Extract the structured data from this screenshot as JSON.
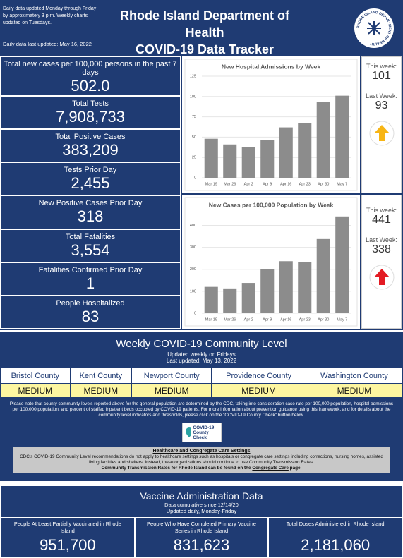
{
  "header": {
    "note": "Daily data updated Monday through Friday by approximately 3 p.m. Weekly charts updated on Tuesdays.",
    "last_updated": "Daily data last updated: May 16, 2022",
    "title_line1": "Rhode Island Department of Health",
    "title_line2": "COVID-19 Data Tracker",
    "logo_text": "RHODE ISLAND DEPARTMENT OF HEALTH"
  },
  "stats": [
    {
      "label": "Total new cases per 100,000 persons in the past 7 days",
      "value": "502.0"
    },
    {
      "label": "Total Tests",
      "value": "7,908,733"
    },
    {
      "label": "Total Positive Cases",
      "value": "383,209"
    },
    {
      "label": "Tests Prior Day",
      "value": "2,455"
    },
    {
      "label": "New Positive Cases Prior Day",
      "value": "318"
    },
    {
      "label": "Total Fatalities",
      "value": "3,554"
    },
    {
      "label": "Fatalities Confirmed Prior Day",
      "value": "1"
    },
    {
      "label": "People Hospitalized",
      "value": "83"
    }
  ],
  "chart_data": [
    {
      "type": "bar",
      "title": "New Hospital Admissions by Week",
      "categories": [
        "Mar 19",
        "Mar 26",
        "Apr 2",
        "Apr 9",
        "Apr 16",
        "Apr 23",
        "Apr 30",
        "May 7"
      ],
      "values": [
        48,
        41,
        38,
        46,
        62,
        67,
        93,
        101
      ],
      "color": "#8c8c8c",
      "ylim": [
        0,
        125
      ],
      "yticks": [
        0,
        25,
        50,
        75,
        100,
        125
      ],
      "grid": true
    },
    {
      "type": "bar",
      "title": "New Cases per 100,000 Population by Week",
      "categories": [
        "Mar 19",
        "Mar 26",
        "Apr 2",
        "Apr 9",
        "Apr 16",
        "Apr 23",
        "Apr 30",
        "May 7"
      ],
      "values": [
        120,
        113,
        138,
        200,
        237,
        232,
        338,
        441
      ],
      "color": "#8c8c8c",
      "ylim": [
        0,
        450
      ],
      "yticks": [
        0,
        100,
        200,
        300,
        400
      ],
      "grid": true
    }
  ],
  "weekly": [
    {
      "this_label": "This week:",
      "this_value": "101",
      "last_label": "Last Week:",
      "last_value": "93"
    },
    {
      "this_label": "This week:",
      "this_value": "441",
      "last_label": "Last Week:",
      "last_value": "338"
    }
  ],
  "community": {
    "title": "Weekly COVID-19 Community Level",
    "subtitle1": "Updated weekly on Fridays",
    "subtitle2": "Last updated: May 13, 2022",
    "counties": [
      {
        "name": "Bristol County",
        "level": "MEDIUM"
      },
      {
        "name": "Kent County",
        "level": "MEDIUM"
      },
      {
        "name": "Newport County",
        "level": "MEDIUM"
      },
      {
        "name": "Providence County",
        "level": "MEDIUM"
      },
      {
        "name": "Washington County",
        "level": "MEDIUM"
      }
    ],
    "note": "Please note that county community levels reported above for the general population are determined by the CDC, taking into consideration case rate per 100,000 population, hospital admissions per 100,000 population, and percent of staffed inpatient beds occupied by COVID-19 patients. For more information about prevention guidance using this framework, and for details about the community level indicators and thresholds, please click on the \"COVID-19 County Check\" button below.",
    "button_line1": "COVID-19",
    "button_line2": "County Check",
    "care_heading": "Healthcare and Congregate Care Settings",
    "care_text": "CDC's COVID-19 Community Level recommendations do not apply to healthcare settings such as hospitals or congregate care settings including corrections, nursing homes, assisted living facilities and shelters. Instead, these organizations should continue to use Community Transmission Rates.",
    "care_bold": "Community Transmission Rates for Rhode Island can be found on the",
    "care_link": "Congregate Care",
    "care_end": "page."
  },
  "vaccine": {
    "title": "Vaccine Administration Data",
    "subtitle1": "Data cumulative since 12/14/20",
    "subtitle2": "Updated daily, Monday-Friday",
    "columns": [
      {
        "label": "People At Least Partially Vaccinated in Rhode Island",
        "value": "951,700"
      },
      {
        "label": "People Who Have Completed Primary Vaccine Series in Rhode Island",
        "value": "831,623"
      },
      {
        "label": "Total Doses Administered in Rhode Island",
        "value": "2,181,060"
      }
    ]
  }
}
